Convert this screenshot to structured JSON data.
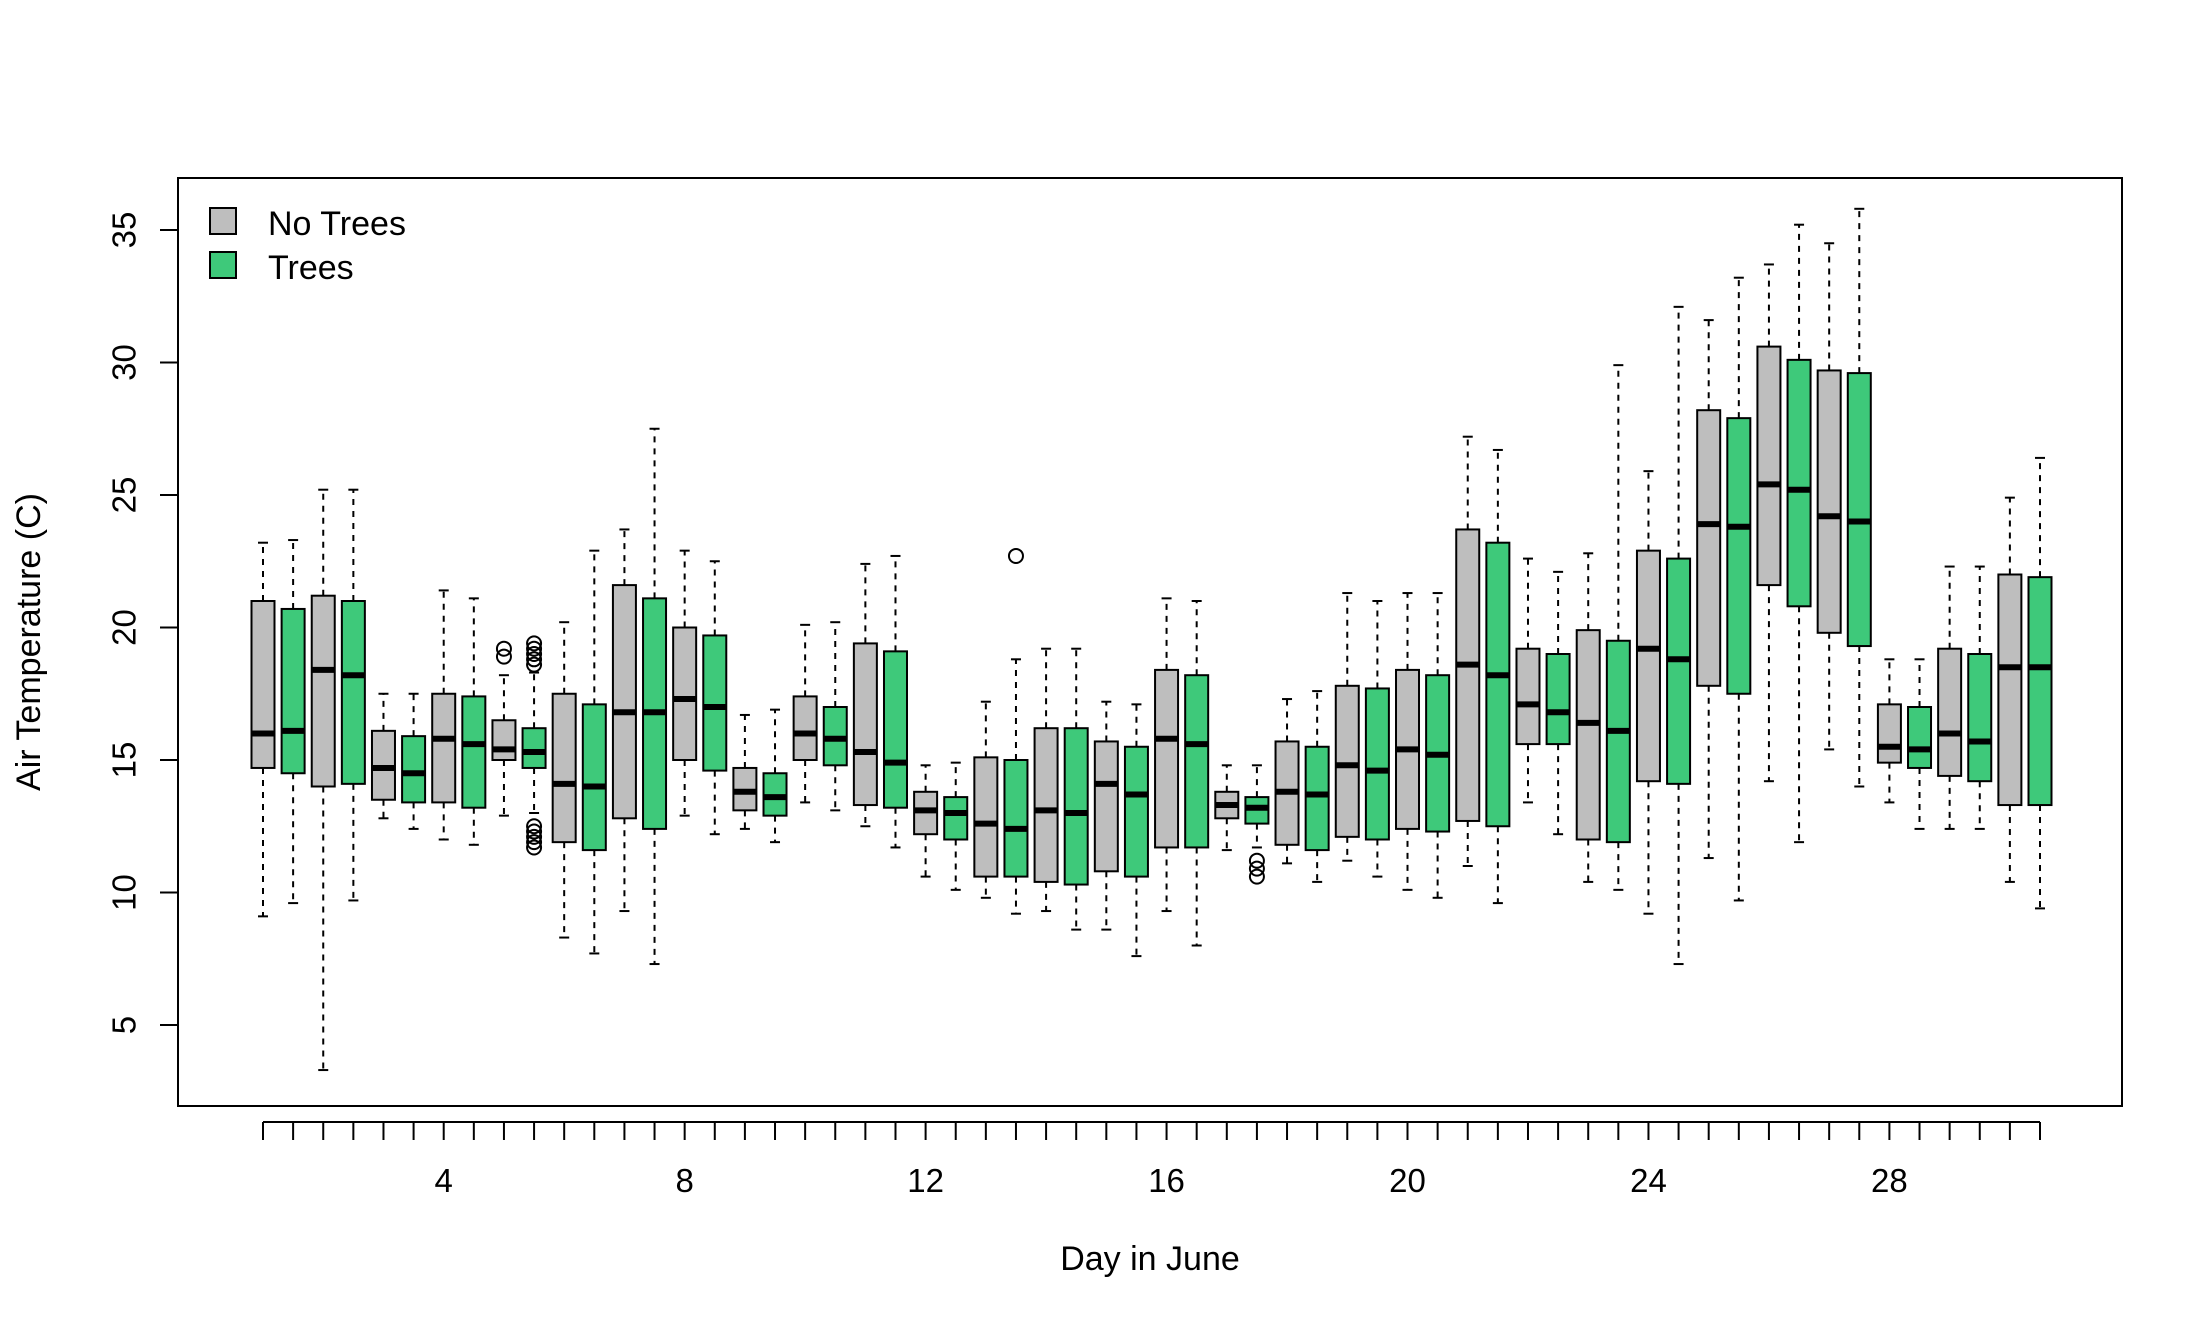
{
  "chart_data": {
    "type": "boxplot",
    "xlabel": "Day in June",
    "ylabel": "Air Temperature (C)",
    "ylim": [
      2,
      37
    ],
    "y_ticks": [
      5,
      10,
      15,
      20,
      25,
      30,
      35
    ],
    "x_tick_labels": [
      {
        "day": 4,
        "label": "4"
      },
      {
        "day": 8,
        "label": "8"
      },
      {
        "day": 12,
        "label": "12"
      },
      {
        "day": 16,
        "label": "16"
      },
      {
        "day": 20,
        "label": "20"
      },
      {
        "day": 24,
        "label": "24"
      },
      {
        "day": 28,
        "label": "28"
      }
    ],
    "grid": false,
    "legend": {
      "position": "top-left",
      "entries": [
        {
          "label": "No Trees",
          "color": "#bebebe"
        },
        {
          "label": "Trees",
          "color": "#3ec97a"
        }
      ]
    },
    "series": [
      {
        "name": "No Trees",
        "color": "#bebebe",
        "boxes": [
          {
            "day": 0.5,
            "min": 9.1,
            "q1": 14.7,
            "median": 16.0,
            "q3": 21.0,
            "max": 23.2
          },
          {
            "day": 1.5,
            "min": 3.3,
            "q1": 14.0,
            "median": 18.4,
            "q3": 21.2,
            "max": 25.2
          },
          {
            "day": 2.5,
            "min": 12.8,
            "q1": 13.5,
            "median": 14.7,
            "q3": 16.1,
            "max": 17.5
          },
          {
            "day": 3.5,
            "min": 12.0,
            "q1": 13.4,
            "median": 15.8,
            "q3": 17.5,
            "max": 21.4
          },
          {
            "day": 4.5,
            "min": 12.9,
            "q1": 15.0,
            "median": 15.4,
            "q3": 16.5,
            "max": 18.2,
            "outliers": [
              18.9,
              19.2
            ]
          },
          {
            "day": 5.5,
            "min": 8.3,
            "q1": 11.9,
            "median": 14.1,
            "q3": 17.5,
            "max": 20.2
          },
          {
            "day": 6.5,
            "min": 9.3,
            "q1": 12.8,
            "median": 16.8,
            "q3": 21.6,
            "max": 23.7
          },
          {
            "day": 7.5,
            "min": 12.9,
            "q1": 15.0,
            "median": 17.3,
            "q3": 20.0,
            "max": 22.9
          },
          {
            "day": 8.5,
            "min": 12.4,
            "q1": 13.1,
            "median": 13.8,
            "q3": 14.7,
            "max": 16.7
          },
          {
            "day": 9.5,
            "min": 13.4,
            "q1": 15.0,
            "median": 16.0,
            "q3": 17.4,
            "max": 20.1
          },
          {
            "day": 10.5,
            "min": 12.5,
            "q1": 13.3,
            "median": 15.3,
            "q3": 19.4,
            "max": 22.4
          },
          {
            "day": 11.5,
            "min": 10.6,
            "q1": 12.2,
            "median": 13.1,
            "q3": 13.8,
            "max": 14.8
          },
          {
            "day": 12.5,
            "min": 9.8,
            "q1": 10.6,
            "median": 12.6,
            "q3": 15.1,
            "max": 17.2
          },
          {
            "day": 13.5,
            "min": 9.3,
            "q1": 10.4,
            "median": 13.1,
            "q3": 16.2,
            "max": 19.2
          },
          {
            "day": 14.5,
            "min": 8.6,
            "q1": 10.8,
            "median": 14.1,
            "q3": 15.7,
            "max": 17.2
          },
          {
            "day": 15.5,
            "min": 9.3,
            "q1": 11.7,
            "median": 15.8,
            "q3": 18.4,
            "max": 21.1
          },
          {
            "day": 16.5,
            "min": 11.6,
            "q1": 12.8,
            "median": 13.3,
            "q3": 13.8,
            "max": 14.8
          },
          {
            "day": 17.5,
            "min": 11.1,
            "q1": 11.8,
            "median": 13.8,
            "q3": 15.7,
            "max": 17.3
          },
          {
            "day": 18.5,
            "min": 11.2,
            "q1": 12.1,
            "median": 14.8,
            "q3": 17.8,
            "max": 21.3
          },
          {
            "day": 19.5,
            "min": 10.1,
            "q1": 12.4,
            "median": 15.4,
            "q3": 18.4,
            "max": 21.3
          },
          {
            "day": 20.5,
            "min": 11.0,
            "q1": 12.7,
            "median": 18.6,
            "q3": 23.7,
            "max": 27.2
          },
          {
            "day": 21.5,
            "min": 13.4,
            "q1": 15.6,
            "median": 17.1,
            "q3": 19.2,
            "max": 22.6
          },
          {
            "day": 22.5,
            "min": 10.4,
            "q1": 12.0,
            "median": 16.4,
            "q3": 19.9,
            "max": 22.8
          },
          {
            "day": 23.5,
            "min": 9.2,
            "q1": 14.2,
            "median": 19.2,
            "q3": 22.9,
            "max": 25.9
          },
          {
            "day": 24.5,
            "min": 11.3,
            "q1": 17.8,
            "median": 23.9,
            "q3": 28.2,
            "max": 31.6
          },
          {
            "day": 25.5,
            "min": 14.2,
            "q1": 21.6,
            "median": 25.4,
            "q3": 30.6,
            "max": 33.7
          },
          {
            "day": 26.5,
            "min": 15.4,
            "q1": 19.8,
            "median": 24.2,
            "q3": 29.7,
            "max": 34.5
          },
          {
            "day": 27.5,
            "min": 13.4,
            "q1": 14.9,
            "median": 15.5,
            "q3": 17.1,
            "max": 18.8
          },
          {
            "day": 28.5,
            "min": 12.4,
            "q1": 14.4,
            "median": 16.0,
            "q3": 19.2,
            "max": 22.3
          },
          {
            "day": 29.5,
            "min": 10.4,
            "q1": 13.3,
            "median": 18.5,
            "q3": 22.0,
            "max": 24.9
          }
        ]
      },
      {
        "name": "Trees",
        "color": "#3ec97a",
        "boxes": [
          {
            "day": 1,
            "min": 9.6,
            "q1": 14.5,
            "median": 16.1,
            "q3": 20.7,
            "max": 23.3
          },
          {
            "day": 2,
            "min": 9.7,
            "q1": 14.1,
            "median": 18.2,
            "q3": 21.0,
            "max": 25.2
          },
          {
            "day": 3,
            "min": 12.4,
            "q1": 13.4,
            "median": 14.5,
            "q3": 15.9,
            "max": 17.5
          },
          {
            "day": 4,
            "min": 11.8,
            "q1": 13.2,
            "median": 15.6,
            "q3": 17.4,
            "max": 21.1
          },
          {
            "day": 5,
            "min": 13.0,
            "q1": 14.7,
            "median": 15.3,
            "q3": 16.2,
            "max": 18.3,
            "outliers": [
              11.7,
              11.9,
              12.1,
              12.3,
              12.5,
              18.6,
              18.8,
              19.0,
              19.2,
              19.4
            ]
          },
          {
            "day": 6,
            "min": 7.7,
            "q1": 11.6,
            "median": 14.0,
            "q3": 17.1,
            "max": 22.9
          },
          {
            "day": 7,
            "min": 7.3,
            "q1": 12.4,
            "median": 16.8,
            "q3": 21.1,
            "max": 27.5
          },
          {
            "day": 8,
            "min": 12.2,
            "q1": 14.6,
            "median": 17.0,
            "q3": 19.7,
            "max": 22.5
          },
          {
            "day": 9,
            "min": 11.9,
            "q1": 12.9,
            "median": 13.6,
            "q3": 14.5,
            "max": 16.9
          },
          {
            "day": 10,
            "min": 13.1,
            "q1": 14.8,
            "median": 15.8,
            "q3": 17.0,
            "max": 20.2
          },
          {
            "day": 11,
            "min": 11.7,
            "q1": 13.2,
            "median": 14.9,
            "q3": 19.1,
            "max": 22.7
          },
          {
            "day": 12,
            "min": 10.1,
            "q1": 12.0,
            "median": 13.0,
            "q3": 13.6,
            "max": 14.9
          },
          {
            "day": 13,
            "min": 9.2,
            "q1": 10.6,
            "median": 12.4,
            "q3": 15.0,
            "max": 18.8,
            "outliers": [
              22.7
            ]
          },
          {
            "day": 14,
            "min": 8.6,
            "q1": 10.3,
            "median": 13.0,
            "q3": 16.2,
            "max": 19.2
          },
          {
            "day": 15,
            "min": 7.6,
            "q1": 10.6,
            "median": 13.7,
            "q3": 15.5,
            "max": 17.1
          },
          {
            "day": 16,
            "min": 8.0,
            "q1": 11.7,
            "median": 15.6,
            "q3": 18.2,
            "max": 21.0
          },
          {
            "day": 17,
            "min": 11.7,
            "q1": 12.6,
            "median": 13.2,
            "q3": 13.6,
            "max": 14.8,
            "outliers": [
              10.6,
              10.9,
              11.2
            ]
          },
          {
            "day": 18,
            "min": 10.4,
            "q1": 11.6,
            "median": 13.7,
            "q3": 15.5,
            "max": 17.6
          },
          {
            "day": 19,
            "min": 10.6,
            "q1": 12.0,
            "median": 14.6,
            "q3": 17.7,
            "max": 21.0
          },
          {
            "day": 20,
            "min": 9.8,
            "q1": 12.3,
            "median": 15.2,
            "q3": 18.2,
            "max": 21.3
          },
          {
            "day": 21,
            "min": 9.6,
            "q1": 12.5,
            "median": 18.2,
            "q3": 23.2,
            "max": 26.7
          },
          {
            "day": 22,
            "min": 12.2,
            "q1": 15.6,
            "median": 16.8,
            "q3": 19.0,
            "max": 22.1
          },
          {
            "day": 23,
            "min": 10.1,
            "q1": 11.9,
            "median": 16.1,
            "q3": 19.5,
            "max": 29.9
          },
          {
            "day": 24,
            "min": 7.3,
            "q1": 14.1,
            "median": 18.8,
            "q3": 22.6,
            "max": 32.1
          },
          {
            "day": 25,
            "min": 9.7,
            "q1": 17.5,
            "median": 23.8,
            "q3": 27.9,
            "max": 33.2
          },
          {
            "day": 26,
            "min": 11.9,
            "q1": 20.8,
            "median": 25.2,
            "q3": 30.1,
            "max": 35.2
          },
          {
            "day": 27,
            "min": 14.0,
            "q1": 19.3,
            "median": 24.0,
            "q3": 29.6,
            "max": 35.8
          },
          {
            "day": 28,
            "min": 12.4,
            "q1": 14.7,
            "median": 15.4,
            "q3": 17.0,
            "max": 18.8
          },
          {
            "day": 29,
            "min": 12.4,
            "q1": 14.2,
            "median": 15.7,
            "q3": 19.0,
            "max": 22.3
          },
          {
            "day": 30,
            "min": 9.4,
            "q1": 13.3,
            "median": 18.5,
            "q3": 21.9,
            "max": 26.4
          }
        ]
      }
    ]
  }
}
